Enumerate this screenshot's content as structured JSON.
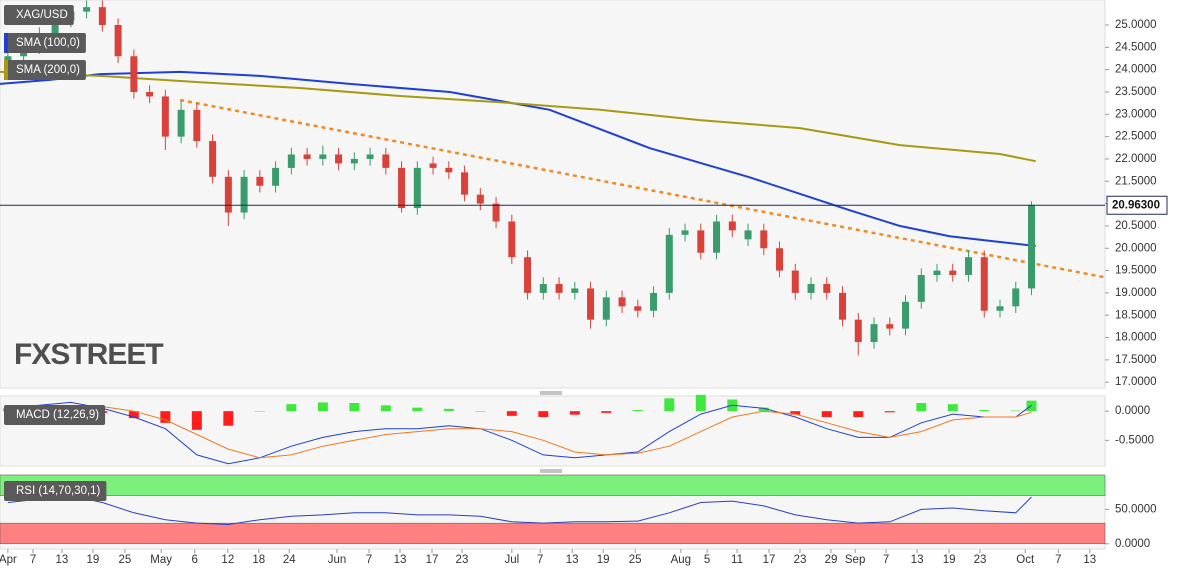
{
  "chart_data": [
    {
      "type": "candlestick",
      "title": "XAG/USD",
      "watermark": "FXSTREET",
      "x": [
        0,
        3,
        6,
        9,
        12,
        15,
        18,
        21,
        24,
        27,
        30,
        33,
        36,
        39,
        42,
        45,
        48,
        51,
        54,
        57,
        60,
        63,
        66,
        69,
        72,
        75,
        78,
        81,
        84,
        87,
        90,
        93,
        96,
        99,
        102,
        105,
        108,
        111,
        114,
        117,
        120,
        123,
        126,
        129,
        132,
        135,
        138,
        141,
        144,
        147,
        150,
        153,
        156,
        159,
        162,
        165,
        168,
        171,
        174,
        177,
        180,
        183,
        186,
        189,
        192,
        195
      ],
      "open": [
        24.1,
        24.3,
        24.5,
        24.8,
        25.1,
        25.3,
        25.4,
        25.0,
        24.3,
        23.5,
        23.4,
        22.5,
        23.1,
        22.4,
        21.6,
        20.8,
        21.6,
        21.4,
        21.8,
        22.1,
        22.0,
        22.1,
        21.9,
        22.0,
        22.1,
        21.8,
        20.9,
        21.9,
        21.8,
        21.7,
        21.2,
        21.0,
        20.6,
        19.8,
        19.0,
        19.2,
        19.0,
        19.1,
        18.4,
        18.9,
        18.7,
        18.6,
        19.0,
        20.3,
        20.4,
        19.9,
        20.6,
        20.2,
        20.4,
        20.0,
        19.5,
        19.0,
        19.2,
        19.0,
        18.4,
        17.9,
        18.3,
        18.2,
        18.8,
        19.4,
        19.5,
        19.4,
        19.8,
        18.6,
        18.7,
        19.1
      ],
      "high": [
        24.45,
        24.65,
        24.95,
        25.25,
        25.45,
        25.55,
        25.55,
        25.15,
        24.45,
        23.65,
        23.55,
        23.3,
        23.25,
        22.55,
        21.75,
        21.75,
        21.75,
        21.95,
        22.25,
        22.25,
        22.3,
        22.25,
        22.15,
        22.25,
        22.25,
        21.95,
        21.95,
        22.05,
        21.95,
        21.85,
        21.35,
        21.15,
        20.75,
        19.95,
        19.35,
        19.35,
        19.25,
        19.25,
        19.05,
        19.05,
        18.85,
        19.15,
        20.45,
        20.55,
        20.55,
        20.75,
        20.75,
        20.55,
        20.55,
        20.15,
        19.65,
        19.35,
        19.35,
        19.15,
        18.55,
        18.45,
        18.45,
        18.95,
        19.55,
        19.65,
        19.65,
        19.95,
        19.95,
        18.85,
        19.25,
        21.05
      ],
      "low": [
        23.95,
        24.15,
        24.35,
        24.65,
        24.95,
        25.15,
        24.85,
        24.15,
        23.35,
        23.25,
        22.2,
        22.35,
        22.25,
        21.45,
        20.5,
        20.65,
        21.25,
        21.25,
        21.65,
        21.85,
        21.85,
        21.75,
        21.75,
        21.85,
        21.65,
        20.8,
        20.75,
        21.65,
        21.55,
        21.05,
        20.85,
        20.45,
        19.65,
        18.85,
        18.85,
        18.85,
        18.85,
        18.2,
        18.25,
        18.55,
        18.45,
        18.45,
        18.85,
        20.15,
        19.75,
        19.75,
        20.25,
        20.05,
        19.85,
        19.35,
        18.85,
        18.85,
        18.85,
        18.25,
        17.6,
        17.75,
        18.05,
        18.05,
        18.65,
        19.25,
        19.25,
        19.25,
        18.45,
        18.45,
        18.55,
        18.95
      ],
      "close": [
        24.3,
        24.5,
        24.8,
        25.1,
        25.3,
        25.4,
        25.0,
        24.3,
        23.5,
        23.4,
        22.5,
        23.1,
        22.4,
        21.6,
        20.8,
        21.6,
        21.4,
        21.8,
        22.1,
        22.0,
        22.1,
        21.9,
        22.0,
        22.1,
        21.8,
        20.9,
        21.8,
        21.8,
        21.7,
        21.2,
        21.0,
        20.6,
        19.8,
        19.0,
        19.2,
        19.0,
        19.1,
        18.4,
        18.9,
        18.7,
        18.6,
        19.0,
        20.3,
        20.4,
        19.9,
        20.6,
        20.4,
        20.4,
        20.0,
        19.5,
        19.0,
        19.2,
        19.0,
        18.4,
        17.9,
        18.3,
        18.2,
        18.8,
        19.4,
        19.5,
        19.4,
        19.8,
        18.6,
        18.7,
        19.1,
        20.963
      ],
      "up_color": "#3a9c6c",
      "down_color": "#d9423b",
      "series": [
        {
          "name": "SMA (100,0)",
          "color": "#1f3fd6",
          "x": [
            -1.5,
            8,
            17.5,
            32.8,
            48,
            65.1,
            84.2,
            103.2,
            122.3,
            141.3,
            160.4,
            169.9,
            179.4,
            189,
            195.8
          ],
          "values": [
            23.68,
            23.77,
            23.9,
            23.95,
            23.86,
            23.68,
            23.5,
            23.1,
            22.24,
            21.59,
            20.85,
            20.5,
            20.27,
            20.14,
            20.05
          ]
        },
        {
          "name": "SMA (200,0)",
          "color": "#a69a12",
          "x": [
            -1.5,
            17.5,
            36.6,
            55.6,
            74.7,
            93.7,
            112.8,
            131.8,
            150.9,
            169.9,
            189,
            195.8
          ],
          "values": [
            23.95,
            23.86,
            23.72,
            23.59,
            23.41,
            23.27,
            23.1,
            22.87,
            22.69,
            22.31,
            22.11,
            21.95
          ]
        }
      ],
      "trendline": {
        "color": "#f08a24",
        "x": [
          32.8,
          209
        ],
        "values": [
          23.32,
          19.35
        ]
      },
      "current_price": {
        "value": 20.963,
        "label": "20.96300"
      },
      "xlim": [
        -1.5,
        209
      ],
      "ylim": [
        16.87,
        25.56
      ],
      "yticks": [
        {
          "value": 17,
          "label": "17.0000"
        },
        {
          "value": 17.5,
          "label": "17.5000"
        },
        {
          "value": 18,
          "label": "18.0000"
        },
        {
          "value": 18.5,
          "label": "18.5000"
        },
        {
          "value": 19,
          "label": "19.0000"
        },
        {
          "value": 19.5,
          "label": "19.5000"
        },
        {
          "value": 20,
          "label": "20.0000"
        },
        {
          "value": 20.5,
          "label": "20.5000"
        },
        {
          "value": 21,
          "label": "21.0000"
        },
        {
          "value": 21.5,
          "label": "21.5000"
        },
        {
          "value": 22,
          "label": "22.0000"
        },
        {
          "value": 22.5,
          "label": "22.5000"
        },
        {
          "value": 23,
          "label": "23.0000"
        },
        {
          "value": 23.5,
          "label": "23.5000"
        },
        {
          "value": 24,
          "label": "24.0000"
        },
        {
          "value": 24.5,
          "label": "24.5000"
        },
        {
          "value": 25,
          "label": "25.0000"
        }
      ],
      "xticks": [
        {
          "value": 0,
          "label": "Apr"
        },
        {
          "value": 4.8,
          "label": "7"
        },
        {
          "value": 10.3,
          "label": "13"
        },
        {
          "value": 16.2,
          "label": "19"
        },
        {
          "value": 22.3,
          "label": "25"
        },
        {
          "value": 29.2,
          "label": "May"
        },
        {
          "value": 35.6,
          "label": "6"
        },
        {
          "value": 41.9,
          "label": "12"
        },
        {
          "value": 47.8,
          "label": "18"
        },
        {
          "value": 53.6,
          "label": "24"
        },
        {
          "value": 62.7,
          "label": "Jun"
        },
        {
          "value": 68.8,
          "label": "7"
        },
        {
          "value": 74.7,
          "label": "13"
        },
        {
          "value": 80.8,
          "label": "17"
        },
        {
          "value": 86.5,
          "label": "23"
        },
        {
          "value": 96,
          "label": "Jul"
        },
        {
          "value": 101.4,
          "label": "7"
        },
        {
          "value": 107.5,
          "label": "13"
        },
        {
          "value": 113.4,
          "label": "19"
        },
        {
          "value": 119.5,
          "label": "25"
        },
        {
          "value": 128.2,
          "label": "Aug"
        },
        {
          "value": 133.2,
          "label": "5"
        },
        {
          "value": 138.9,
          "label": "11"
        },
        {
          "value": 145,
          "label": "17"
        },
        {
          "value": 150.9,
          "label": "23"
        },
        {
          "value": 156.8,
          "label": "29"
        },
        {
          "value": 161.4,
          "label": "Sep"
        },
        {
          "value": 167.3,
          "label": "7"
        },
        {
          "value": 173.2,
          "label": "13"
        },
        {
          "value": 179.3,
          "label": "19"
        },
        {
          "value": 185.2,
          "label": "23"
        },
        {
          "value": 193.8,
          "label": "Oct"
        },
        {
          "value": 200.1,
          "label": "7"
        },
        {
          "value": 206.1,
          "label": "13"
        }
      ]
    },
    {
      "type": "macd",
      "title": "MACD (12,26,9)",
      "x": [
        0,
        6,
        12,
        18,
        24,
        30,
        36,
        42,
        48,
        54,
        60,
        66,
        72,
        78,
        84,
        90,
        96,
        102,
        108,
        114,
        120,
        126,
        132,
        138,
        144,
        150,
        156,
        162,
        168,
        174,
        180,
        186,
        192,
        195
      ],
      "histogram": [
        0.05,
        0.06,
        0.07,
        -0.03,
        -0.12,
        -0.2,
        -0.32,
        -0.25,
        0.0,
        0.12,
        0.15,
        0.14,
        0.1,
        0.06,
        0.04,
        0.0,
        -0.08,
        -0.1,
        -0.06,
        -0.03,
        0.02,
        0.22,
        0.28,
        0.2,
        0.06,
        -0.06,
        -0.1,
        -0.1,
        -0.02,
        0.14,
        0.12,
        0.02,
        0.01,
        0.18
      ],
      "up_color": "#3ee83e",
      "down_color": "#ff1e1e",
      "series": [
        {
          "color": "#2040d0",
          "values": [
            0.05,
            0.1,
            0.15,
            0.05,
            -0.1,
            -0.3,
            -0.75,
            -0.9,
            -0.8,
            -0.6,
            -0.45,
            -0.35,
            -0.3,
            -0.3,
            -0.25,
            -0.3,
            -0.5,
            -0.75,
            -0.8,
            -0.75,
            -0.7,
            -0.35,
            -0.05,
            0.1,
            0.05,
            -0.1,
            -0.3,
            -0.45,
            -0.45,
            -0.2,
            -0.05,
            -0.1,
            -0.1,
            0.1
          ]
        },
        {
          "color": "#f07a20",
          "values": [
            0.0,
            0.05,
            0.08,
            0.08,
            0.0,
            -0.15,
            -0.4,
            -0.65,
            -0.8,
            -0.75,
            -0.6,
            -0.5,
            -0.4,
            -0.35,
            -0.3,
            -0.3,
            -0.35,
            -0.5,
            -0.7,
            -0.75,
            -0.72,
            -0.6,
            -0.35,
            -0.1,
            0.0,
            -0.05,
            -0.2,
            -0.35,
            -0.45,
            -0.35,
            -0.15,
            -0.1,
            -0.1,
            -0.02
          ]
        }
      ],
      "xlim": [
        -1.5,
        209
      ],
      "ylim": [
        -0.94,
        0.26
      ],
      "yticks": [
        {
          "value": 0,
          "label": "0.0000"
        },
        {
          "value": -0.5,
          "label": "-0.5000"
        }
      ]
    },
    {
      "type": "line",
      "title": "RSI (14,70,30,1)",
      "x": [
        0,
        6,
        12,
        18,
        24,
        30,
        36,
        42,
        48,
        54,
        60,
        66,
        72,
        78,
        84,
        90,
        96,
        102,
        108,
        114,
        120,
        126,
        132,
        138,
        144,
        150,
        156,
        162,
        168,
        174,
        180,
        186,
        192,
        195
      ],
      "values": [
        60,
        65,
        70,
        60,
        45,
        35,
        30,
        28,
        35,
        40,
        42,
        45,
        45,
        42,
        42,
        40,
        32,
        30,
        32,
        32,
        33,
        45,
        60,
        62,
        55,
        42,
        35,
        30,
        32,
        50,
        52,
        48,
        45,
        68
      ],
      "color": "#2a3fbf",
      "bands": [
        {
          "range": [
            70,
            100
          ],
          "color": "#7cf07c"
        },
        {
          "range": [
            0,
            30
          ],
          "color": "#ff8080"
        }
      ],
      "xlim": [
        -1.5,
        209
      ],
      "ylim": [
        -7.6,
        100
      ],
      "yticks": [
        {
          "value": 50,
          "label": "50.0000"
        },
        {
          "value": 0,
          "label": "0.0000"
        }
      ]
    }
  ]
}
